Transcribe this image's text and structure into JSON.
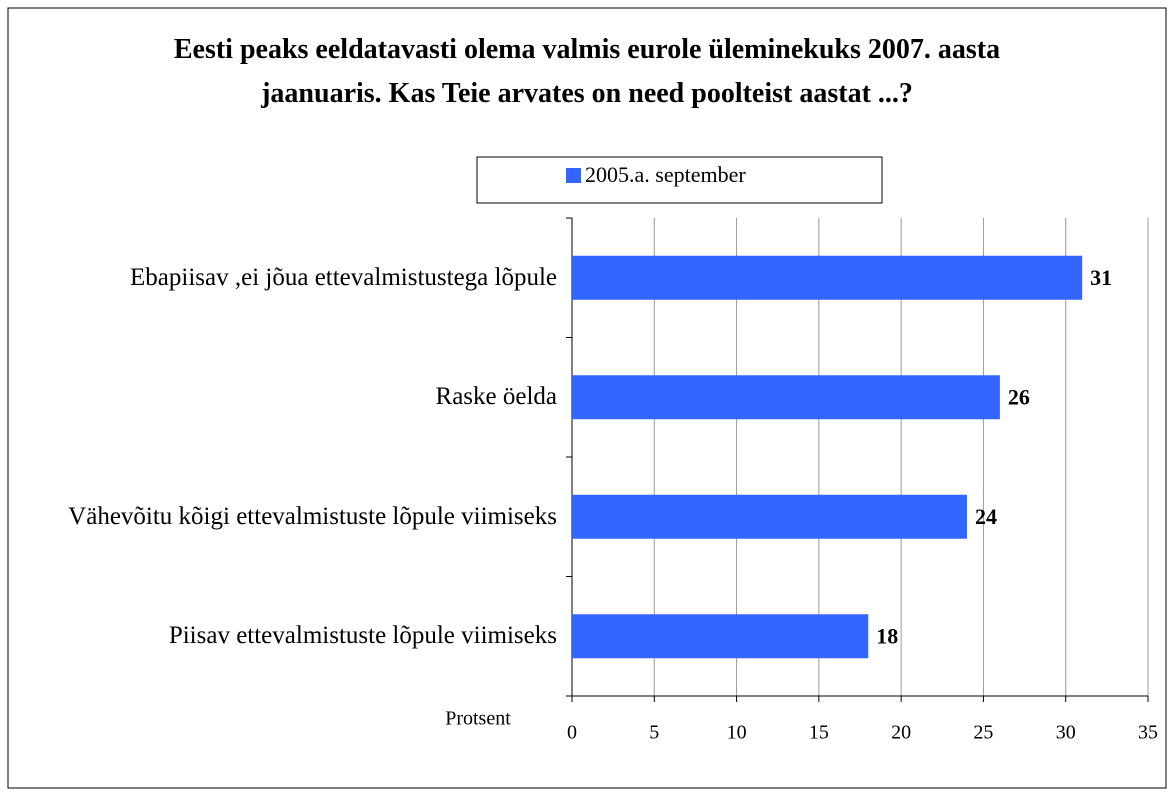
{
  "chart_data": {
    "type": "bar",
    "orientation": "horizontal",
    "title": "Eesti peaks eeldatavasti olema valmis eurole üleminekuks 2007. aasta jaanuaris. Kas Teie arvates on need poolteist aastat ...?",
    "categories": [
      "Ebapiisav ,ei jõua ettevalmistustega lõpule",
      "Raske öelda",
      "Vähevõitu kõigi ettevalmistuste lõpule viimiseks",
      "Piisav ettevalmistuste lõpule viimiseks"
    ],
    "series": [
      {
        "name": "2005.a. september",
        "color": "#3366ff",
        "values": [
          31,
          26,
          24,
          18
        ]
      }
    ],
    "xlabel": "Protsent",
    "xlim": [
      0,
      35
    ],
    "xticks": [
      0,
      5,
      10,
      15,
      20,
      25,
      30,
      35
    ],
    "grid": true,
    "legend": "top"
  }
}
